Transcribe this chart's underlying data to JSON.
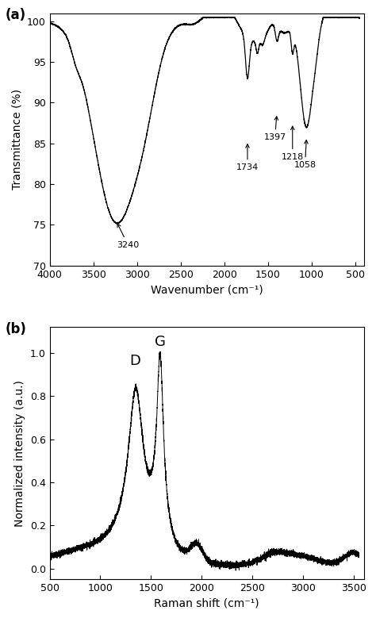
{
  "ftir_xlim": [
    4000,
    400
  ],
  "ftir_ylim": [
    70,
    101
  ],
  "ftir_xlabel": "Wavenumber (cm⁻¹)",
  "ftir_ylabel": "Transmittance (%)",
  "ftir_yticks": [
    70,
    75,
    80,
    85,
    90,
    95,
    100
  ],
  "ftir_xticks": [
    4000,
    3500,
    3000,
    2500,
    2000,
    1500,
    1000,
    500
  ],
  "raman_xlim": [
    500,
    3600
  ],
  "raman_ylim": [
    -0.05,
    1.12
  ],
  "raman_xlabel": "Raman shift (cm⁻¹)",
  "raman_ylabel": "Normalized intensity (a.u.)",
  "raman_yticks": [
    0.0,
    0.2,
    0.4,
    0.6,
    0.8,
    1.0
  ],
  "raman_xticks": [
    500,
    1000,
    1500,
    2000,
    2500,
    3000,
    3500
  ],
  "label_a": "(a)",
  "label_b": "(b)",
  "background_color": "#ffffff",
  "line_color": "#000000"
}
